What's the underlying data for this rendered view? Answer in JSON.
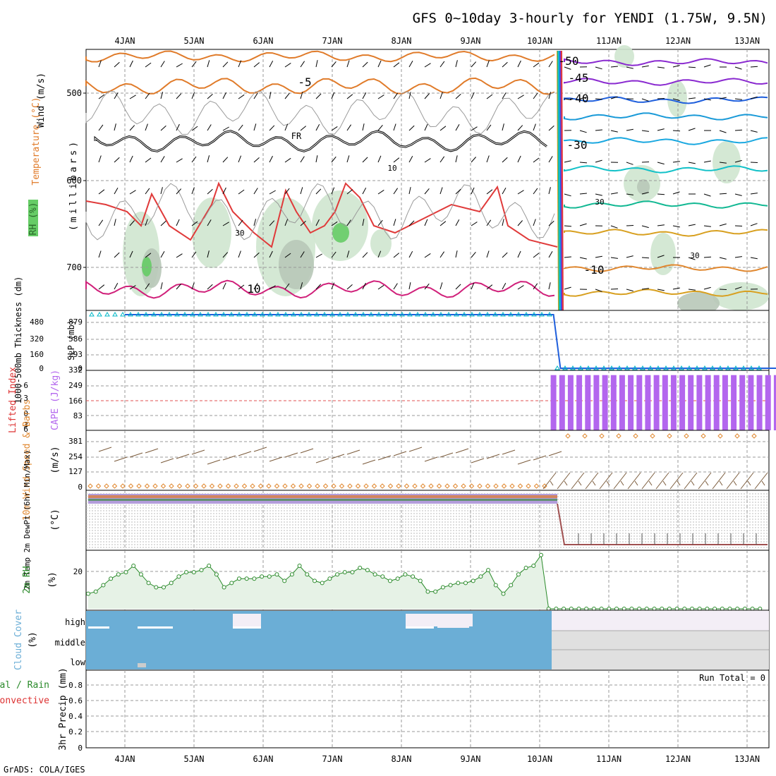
{
  "title": "GFS 0~10day 3-hourly for YENDI (1.75W, 9.5N)",
  "footer": "GrADS: COLA/IGES",
  "dates": [
    "4JAN",
    "5JAN",
    "6JAN",
    "7JAN",
    "8JAN",
    "9JAN",
    "10JAN",
    "11JAN",
    "12JAN",
    "13JAN"
  ],
  "colors": {
    "temperature": "#e07b2a",
    "wind": "#000000",
    "rh_fill": "#cfe6cf",
    "rh_mid": "#b8c8b8",
    "rh_high": "#66cc66",
    "thickness": "#00b7c7",
    "slp": "#1f5fdc",
    "lifted_index": "#dd3333",
    "cape": "#b366ee",
    "wind10m": "#e08830",
    "barb": "#7a5a3a",
    "rh2m": "#2a8a2a",
    "cloud": "#6baed6",
    "cloud_empty": "#f3eef6",
    "grid": "#999999"
  },
  "upper_panel": {
    "ylabel_parts": [
      "Wind (m/s)",
      "Temperature (°C)",
      "RH (%)"
    ],
    "ylabel_right": "(millibars)",
    "y_ticks": [
      "500",
      "600",
      "700"
    ],
    "contour_labels": [
      "-5",
      "FR",
      "10",
      "10",
      "30",
      "30",
      "30",
      "-50",
      "-45",
      "-40",
      "-30",
      "-10"
    ]
  },
  "chart_data": [
    {
      "type": "line",
      "panel": "thickness_slp",
      "ylabel_left": "1000-500mb Thickness (dm)",
      "ylabel_right": "SLP (mb)",
      "y_ticks_left": [
        "480",
        "320",
        "160",
        "0"
      ],
      "y_ticks_right": [
        "879",
        "586",
        "293",
        "0"
      ],
      "series": [
        {
          "name": "SLP",
          "x": [
            0,
            6.2,
            6.3,
            9.9
          ],
          "values": [
            900,
            900,
            0,
            0
          ]
        }
      ]
    },
    {
      "type": "bar",
      "panel": "cape_li",
      "ylabel_left": "Lifted Index",
      "ylabel_right": "CAPE (J/kg)",
      "y_ticks_left": [
        "-6",
        "-3",
        "0",
        "3",
        "6"
      ],
      "y_ticks_right": [
        "332",
        "249",
        "166",
        "83"
      ],
      "series": [
        {
          "name": "CAPE",
          "start_day": 6.2,
          "end_day": 9.8,
          "count": 30,
          "value": 306
        }
      ]
    },
    {
      "type": "line",
      "panel": "wind10m",
      "ylabel_left": "10m Wind Speed & Barbs",
      "ylabel_right": "(m/s)",
      "y_ticks": [
        "381",
        "254",
        "127",
        "0"
      ]
    },
    {
      "type": "line",
      "panel": "temp2m",
      "ylabel_left": "2m Temp 2m DewPt (6hr Min/Max)",
      "ylabel_right": "(°C)"
    },
    {
      "type": "area",
      "panel": "rh2m",
      "ylabel_left": "2m RH",
      "ylabel_right": "(%)",
      "y_ticks": [
        "20"
      ],
      "series": [
        {
          "name": "2m RH",
          "values": [
            7,
            8,
            11,
            14,
            16,
            17,
            20,
            16,
            12,
            10,
            10,
            12,
            15,
            17,
            17,
            18,
            20,
            16,
            10,
            12,
            14,
            14,
            14,
            15,
            15,
            16,
            13,
            16,
            20,
            16,
            13,
            12,
            14,
            16,
            17,
            17,
            19,
            18,
            16,
            15,
            13,
            14,
            16,
            15,
            13,
            8,
            8,
            10,
            11,
            12,
            12,
            13,
            15,
            18,
            11,
            7,
            11,
            16,
            19,
            20,
            25,
            0,
            0,
            0,
            0,
            0,
            0,
            0,
            0,
            0,
            0,
            0,
            0,
            0,
            0,
            0,
            0,
            0,
            0,
            0,
            0,
            0,
            0,
            0,
            0,
            0,
            0,
            0,
            0,
            0
          ]
        }
      ]
    },
    {
      "type": "area",
      "panel": "cloud",
      "ylabel_left": "Cloud Cover",
      "ylabel_right": "(%)",
      "levels": [
        "high",
        "middle",
        "low"
      ]
    },
    {
      "type": "bar",
      "panel": "precip",
      "ylabel_left": "Total / Rain Convective",
      "ylabel_right": "3hr Precip (mm)",
      "y_ticks": [
        "0.8",
        "0.6",
        "0.4",
        "0.2",
        "0"
      ],
      "run_total": "Run Total = 0"
    }
  ]
}
